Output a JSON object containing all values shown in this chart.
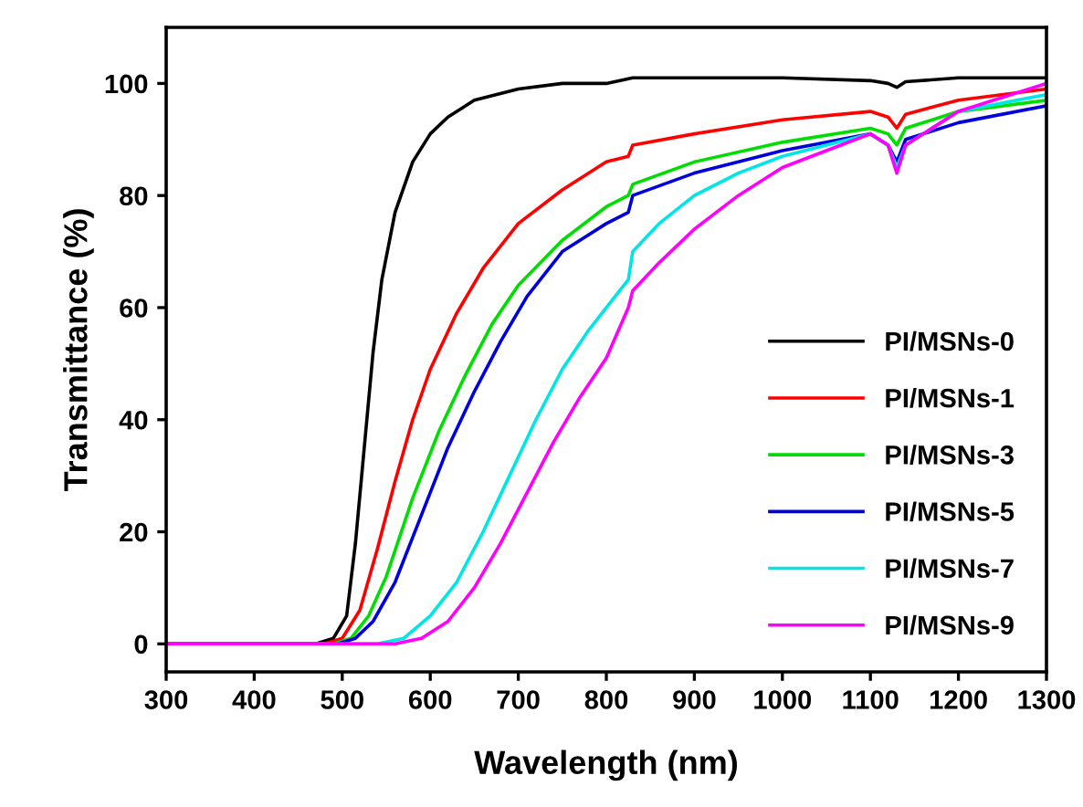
{
  "chart_data": {
    "type": "line",
    "xlabel": "Wavelength (nm)",
    "ylabel": "Transmittance (%)",
    "xlim": [
      300,
      1300
    ],
    "ylim": [
      -5,
      110
    ],
    "xticks": [
      300,
      400,
      500,
      600,
      700,
      800,
      900,
      1000,
      1100,
      1200,
      1300
    ],
    "yticks": [
      0,
      20,
      40,
      60,
      80,
      100
    ],
    "grid": false,
    "legend": "bottom right",
    "line_style": "solid",
    "marker": "none",
    "series": [
      {
        "name": "PI/MSNs-0",
        "color": "#000000",
        "x": [
          300,
          470,
          490,
          505,
          515,
          525,
          535,
          545,
          560,
          580,
          600,
          620,
          650,
          700,
          750,
          800,
          830,
          900,
          1000,
          1100,
          1120,
          1130,
          1140,
          1200,
          1300
        ],
        "values": [
          0,
          0,
          1,
          5,
          18,
          35,
          52,
          65,
          77,
          86,
          91,
          94,
          97,
          99,
          100,
          100,
          101,
          101,
          101,
          100.5,
          100,
          99.3,
          100.3,
          101,
          101
        ]
      },
      {
        "name": "PI/MSNs-1",
        "color": "#ff0000",
        "x": [
          300,
          480,
          500,
          520,
          540,
          560,
          580,
          600,
          630,
          660,
          700,
          750,
          800,
          825,
          830,
          900,
          1000,
          1100,
          1120,
          1130,
          1140,
          1200,
          1300
        ],
        "values": [
          0,
          0,
          1,
          6,
          17,
          29,
          40,
          49,
          59,
          67,
          75,
          81,
          86,
          87,
          89,
          91,
          93.5,
          95,
          94,
          92,
          94.5,
          97,
          99
        ]
      },
      {
        "name": "PI/MSNs-3",
        "color": "#00dd00",
        "x": [
          300,
          490,
          510,
          530,
          550,
          580,
          610,
          640,
          670,
          700,
          750,
          800,
          825,
          830,
          900,
          1000,
          1100,
          1120,
          1130,
          1140,
          1200,
          1300
        ],
        "values": [
          0,
          0,
          1,
          5,
          12,
          26,
          38,
          48,
          57,
          64,
          72,
          78,
          80,
          82,
          86,
          89.5,
          92,
          91,
          89,
          92,
          95,
          97
        ]
      },
      {
        "name": "PI/MSNs-5",
        "color": "#0000dd",
        "x": [
          300,
          495,
          515,
          535,
          560,
          590,
          620,
          650,
          680,
          710,
          750,
          800,
          825,
          830,
          900,
          1000,
          1100,
          1120,
          1130,
          1140,
          1200,
          1300
        ],
        "values": [
          0,
          0,
          1,
          4,
          11,
          23,
          35,
          45,
          54,
          62,
          70,
          75,
          77,
          80,
          84,
          88,
          91,
          89,
          86,
          90,
          93,
          96
        ]
      },
      {
        "name": "PI/MSNs-7",
        "color": "#00e5e5",
        "x": [
          300,
          540,
          570,
          600,
          630,
          660,
          690,
          720,
          750,
          780,
          810,
          825,
          830,
          860,
          900,
          950,
          1000,
          1100,
          1120,
          1130,
          1140,
          1200,
          1300
        ],
        "values": [
          0,
          0,
          1,
          5,
          11,
          20,
          30,
          40,
          49,
          56,
          62,
          65,
          70,
          75,
          80,
          84,
          87,
          91,
          89,
          85,
          89,
          95,
          98
        ]
      },
      {
        "name": "PI/MSNs-9",
        "color": "#ff00ff",
        "x": [
          300,
          560,
          590,
          620,
          650,
          680,
          710,
          740,
          770,
          800,
          825,
          830,
          860,
          900,
          950,
          1000,
          1050,
          1100,
          1120,
          1130,
          1140,
          1200,
          1300
        ],
        "values": [
          0,
          0,
          1,
          4,
          10,
          18,
          27,
          36,
          44,
          51,
          60,
          63,
          68,
          74,
          80,
          85,
          88,
          91,
          89,
          84,
          89,
          95,
          100
        ]
      }
    ]
  }
}
